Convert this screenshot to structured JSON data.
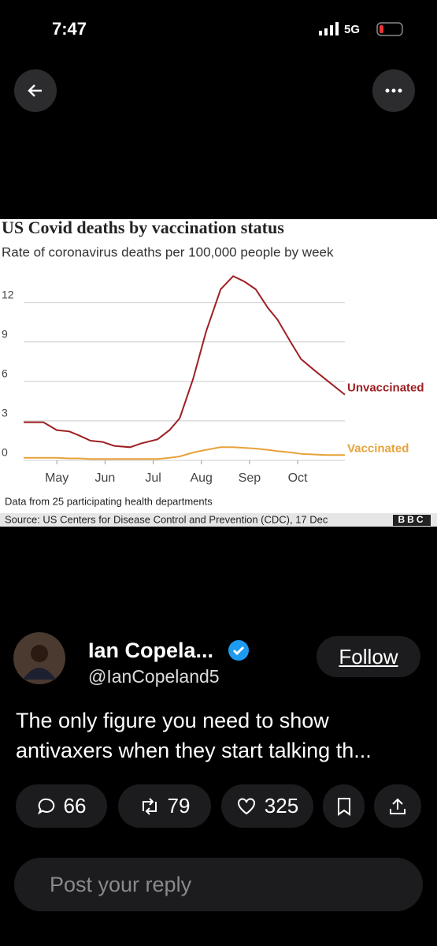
{
  "status_bar": {
    "time": "7:47",
    "network": "5G"
  },
  "chart_data": {
    "type": "line",
    "title": "US Covid deaths by vaccination status",
    "subtitle": "Rate of coronavirus deaths per 100,000 people by week",
    "x": [
      4.31,
      4.72,
      5,
      5.26,
      5.46,
      5.7,
      5.95,
      6.19,
      6.52,
      6.76,
      7.09,
      7.34,
      7.55,
      7.83,
      8.1,
      8.4,
      8.66,
      8.89,
      9.13,
      9.38,
      9.58,
      9.87,
      10.07,
      10.33,
      10.6,
      10.98
    ],
    "series": [
      {
        "name": "Unvaccinated",
        "color": "#9e1f23",
        "values": [
          2.9,
          2.9,
          2.3,
          2.2,
          1.9,
          1.5,
          1.4,
          1.1,
          1.0,
          1.3,
          1.6,
          2.3,
          3.2,
          6.2,
          9.8,
          13,
          14,
          13.6,
          13,
          11.6,
          10.7,
          8.9,
          7.7,
          6.9,
          6.1,
          5.0
        ]
      },
      {
        "name": "Vaccinated",
        "color": "#e8a23a",
        "values": [
          0.2,
          0.2,
          0.2,
          0.15,
          0.15,
          0.1,
          0.1,
          0.1,
          0.1,
          0.1,
          0.1,
          0.2,
          0.3,
          0.6,
          0.8,
          1.0,
          1.0,
          0.95,
          0.9,
          0.8,
          0.7,
          0.6,
          0.5,
          0.45,
          0.4,
          0.4
        ]
      }
    ],
    "xlim": [
      4.31,
      10.98
    ],
    "xticks": [
      {
        "value": 5,
        "label": "May"
      },
      {
        "value": 6,
        "label": "Jun"
      },
      {
        "value": 7,
        "label": "Jul"
      },
      {
        "value": 8,
        "label": "Aug"
      },
      {
        "value": 9,
        "label": "Sep"
      },
      {
        "value": 10,
        "label": "Oct"
      }
    ],
    "ylim": [
      0,
      14.5
    ],
    "yticks": [
      0,
      3,
      6,
      9,
      12
    ],
    "grid": true,
    "note": "Data from 25 participating health departments",
    "source": "Source: US Centers for Disease Control and Prevention (CDC), 17 Dec",
    "logo": "BBC"
  },
  "post": {
    "name": "Ian Copela...",
    "handle": "@IanCopeland5",
    "follow": "Follow",
    "text": "The only figure you need to show antivaxers when they start talking th...",
    "replies": "66",
    "reposts": "79",
    "likes": "325",
    "reply_placeholder": "Post your reply"
  }
}
